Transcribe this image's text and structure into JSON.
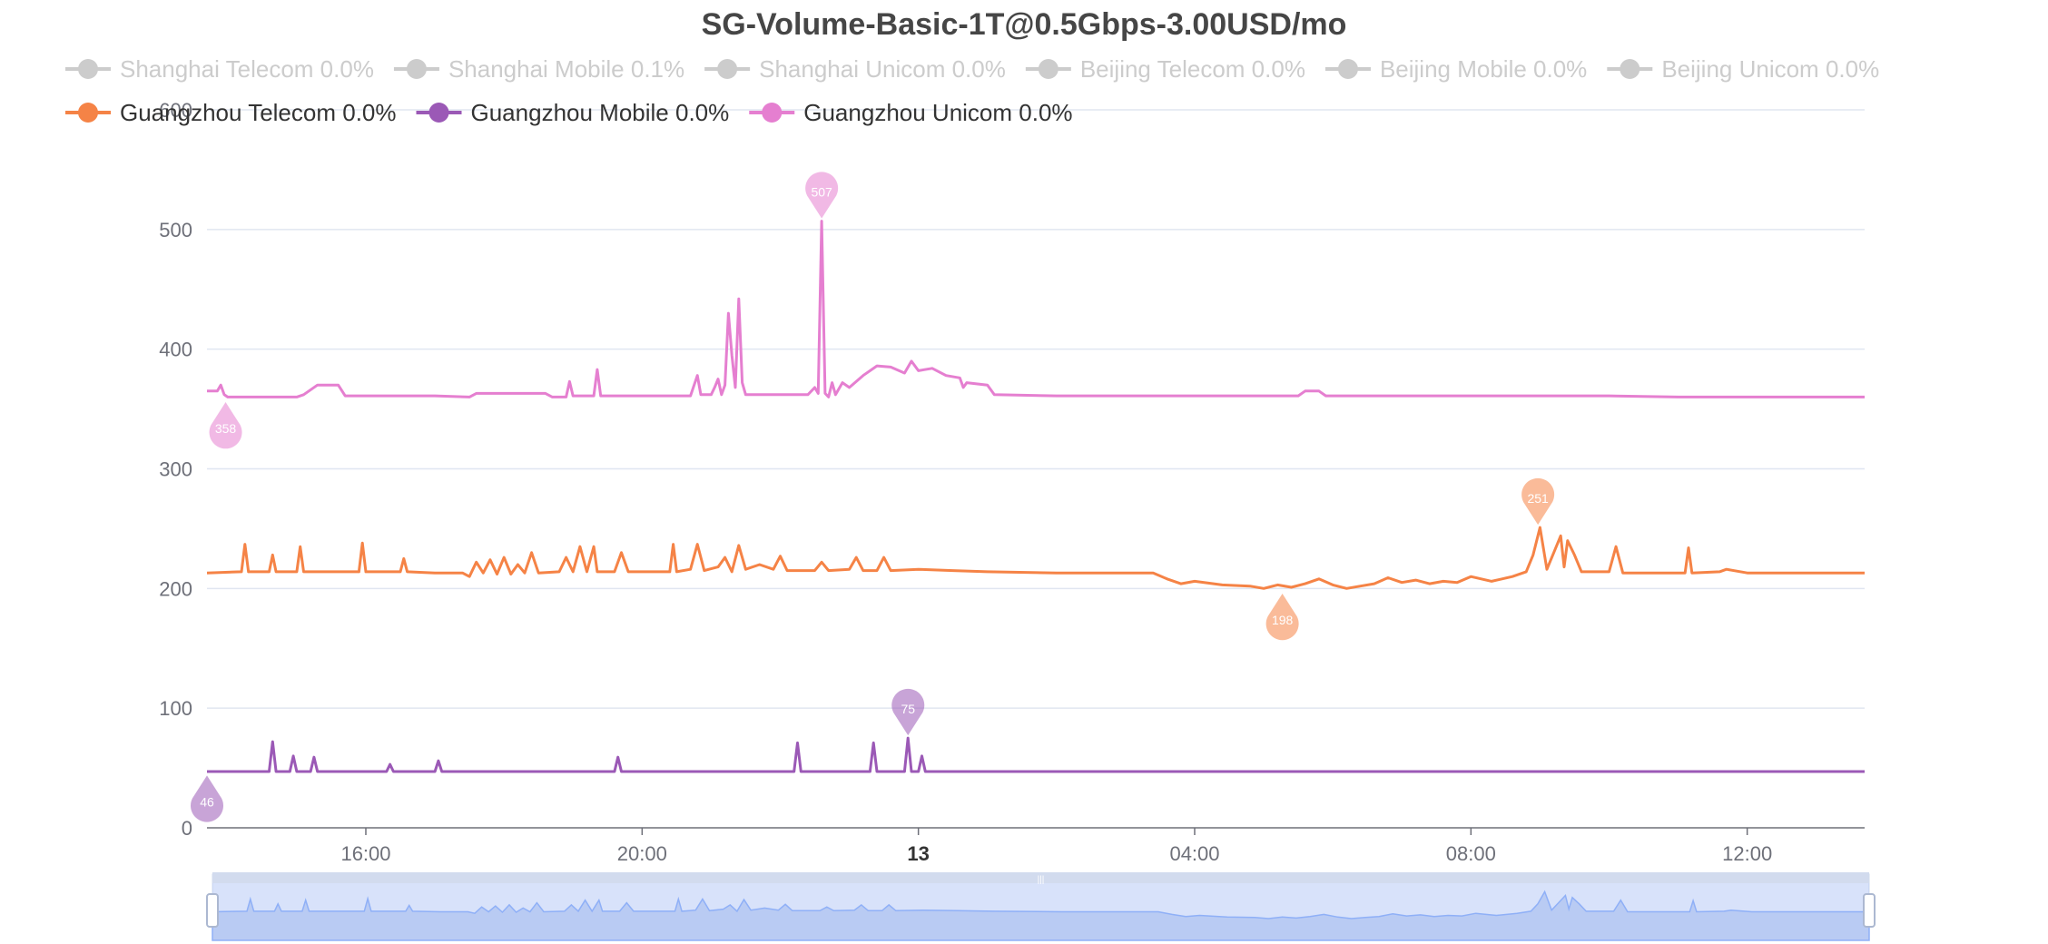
{
  "chart_data": {
    "type": "line",
    "title": "SG-Volume-Basic-1T@0.5Gbps-3.00USD/mo",
    "ylim": [
      0,
      600
    ],
    "y_ticks": [
      0,
      100,
      200,
      300,
      400,
      500,
      600
    ],
    "x_range_hours": [
      13.7,
      37.7
    ],
    "x_ticks": [
      {
        "hour": 16,
        "label": "16:00",
        "bold": false
      },
      {
        "hour": 20,
        "label": "20:00",
        "bold": false
      },
      {
        "hour": 24,
        "label": "13",
        "bold": true
      },
      {
        "hour": 28,
        "label": "04:00",
        "bold": false
      },
      {
        "hour": 32,
        "label": "08:00",
        "bold": false
      },
      {
        "hour": 36,
        "label": "12:00",
        "bold": false
      }
    ],
    "grid": true,
    "legend_position": "top",
    "legend": [
      {
        "name": "Shanghai Telecom 0.0%",
        "active": false,
        "color": "#cccccc"
      },
      {
        "name": "Shanghai Mobile 0.1%",
        "active": false,
        "color": "#cccccc"
      },
      {
        "name": "Shanghai Unicom 0.0%",
        "active": false,
        "color": "#cccccc"
      },
      {
        "name": "Beijing Telecom 0.0%",
        "active": false,
        "color": "#cccccc"
      },
      {
        "name": "Beijing Mobile 0.0%",
        "active": false,
        "color": "#cccccc"
      },
      {
        "name": "Beijing Unicom 0.0%",
        "active": false,
        "color": "#cccccc"
      },
      {
        "name": "Guangzhou Telecom 0.0%",
        "active": true,
        "color": "#f58346"
      },
      {
        "name": "Guangzhou Mobile 0.0%",
        "active": true,
        "color": "#9b59b6"
      },
      {
        "name": "Guangzhou Unicom 0.0%",
        "active": true,
        "color": "#e57fd0"
      }
    ],
    "series": [
      {
        "name": "Guangzhou Unicom 0.0%",
        "color": "#e57fd0",
        "points": [
          [
            13.7,
            365
          ],
          [
            13.85,
            365
          ],
          [
            13.9,
            370
          ],
          [
            13.95,
            362
          ],
          [
            14.0,
            360
          ],
          [
            15.0,
            360
          ],
          [
            15.1,
            362
          ],
          [
            15.3,
            370
          ],
          [
            15.6,
            370
          ],
          [
            15.7,
            361
          ],
          [
            17.0,
            361
          ],
          [
            17.5,
            360
          ],
          [
            17.6,
            363
          ],
          [
            18.6,
            363
          ],
          [
            18.7,
            360
          ],
          [
            18.9,
            360
          ],
          [
            18.95,
            373
          ],
          [
            19.0,
            361
          ],
          [
            19.3,
            361
          ],
          [
            19.35,
            383
          ],
          [
            19.4,
            361
          ],
          [
            20.7,
            361
          ],
          [
            20.8,
            378
          ],
          [
            20.85,
            362
          ],
          [
            21.0,
            362
          ],
          [
            21.05,
            368
          ],
          [
            21.1,
            375
          ],
          [
            21.15,
            362
          ],
          [
            21.2,
            370
          ],
          [
            21.25,
            430
          ],
          [
            21.3,
            395
          ],
          [
            21.35,
            368
          ],
          [
            21.4,
            442
          ],
          [
            21.45,
            372
          ],
          [
            21.5,
            362
          ],
          [
            22.4,
            362
          ],
          [
            22.5,
            368
          ],
          [
            22.55,
            363
          ],
          [
            22.6,
            507
          ],
          [
            22.65,
            363
          ],
          [
            22.7,
            360
          ],
          [
            22.75,
            372
          ],
          [
            22.8,
            362
          ],
          [
            22.9,
            372
          ],
          [
            23.0,
            368
          ],
          [
            23.2,
            378
          ],
          [
            23.4,
            386
          ],
          [
            23.6,
            385
          ],
          [
            23.8,
            380
          ],
          [
            23.9,
            390
          ],
          [
            24.0,
            382
          ],
          [
            24.2,
            384
          ],
          [
            24.4,
            378
          ],
          [
            24.6,
            376
          ],
          [
            24.65,
            368
          ],
          [
            24.7,
            372
          ],
          [
            25.0,
            370
          ],
          [
            25.1,
            362
          ],
          [
            26.0,
            361
          ],
          [
            27.0,
            361
          ],
          [
            28.0,
            361
          ],
          [
            29.0,
            361
          ],
          [
            29.5,
            361
          ],
          [
            29.6,
            365
          ],
          [
            29.8,
            365
          ],
          [
            29.9,
            361
          ],
          [
            32.0,
            361
          ],
          [
            34.0,
            361
          ],
          [
            35.0,
            360
          ],
          [
            37.7,
            360
          ]
        ]
      },
      {
        "name": "Guangzhou Telecom 0.0%",
        "color": "#f58346",
        "points": [
          [
            13.7,
            213
          ],
          [
            14.2,
            214
          ],
          [
            14.25,
            237
          ],
          [
            14.3,
            214
          ],
          [
            14.6,
            214
          ],
          [
            14.65,
            228
          ],
          [
            14.7,
            214
          ],
          [
            15.0,
            214
          ],
          [
            15.05,
            235
          ],
          [
            15.1,
            214
          ],
          [
            15.9,
            214
          ],
          [
            15.95,
            238
          ],
          [
            16.0,
            214
          ],
          [
            16.5,
            214
          ],
          [
            16.55,
            225
          ],
          [
            16.6,
            214
          ],
          [
            17.0,
            213
          ],
          [
            17.4,
            213
          ],
          [
            17.5,
            210
          ],
          [
            17.6,
            222
          ],
          [
            17.7,
            213
          ],
          [
            17.8,
            224
          ],
          [
            17.9,
            212
          ],
          [
            18.0,
            226
          ],
          [
            18.1,
            212
          ],
          [
            18.2,
            220
          ],
          [
            18.3,
            213
          ],
          [
            18.4,
            230
          ],
          [
            18.5,
            213
          ],
          [
            18.8,
            214
          ],
          [
            18.9,
            226
          ],
          [
            19.0,
            214
          ],
          [
            19.1,
            235
          ],
          [
            19.2,
            214
          ],
          [
            19.3,
            235
          ],
          [
            19.35,
            214
          ],
          [
            19.6,
            214
          ],
          [
            19.7,
            230
          ],
          [
            19.8,
            214
          ],
          [
            20.4,
            214
          ],
          [
            20.45,
            237
          ],
          [
            20.5,
            214
          ],
          [
            20.7,
            216
          ],
          [
            20.8,
            237
          ],
          [
            20.9,
            215
          ],
          [
            21.1,
            218
          ],
          [
            21.2,
            226
          ],
          [
            21.3,
            214
          ],
          [
            21.4,
            236
          ],
          [
            21.5,
            216
          ],
          [
            21.7,
            220
          ],
          [
            21.9,
            216
          ],
          [
            22.0,
            227
          ],
          [
            22.1,
            215
          ],
          [
            22.5,
            215
          ],
          [
            22.6,
            222
          ],
          [
            22.7,
            215
          ],
          [
            23.0,
            216
          ],
          [
            23.1,
            226
          ],
          [
            23.2,
            215
          ],
          [
            23.4,
            215
          ],
          [
            23.5,
            226
          ],
          [
            23.6,
            215
          ],
          [
            24.0,
            216
          ],
          [
            24.5,
            215
          ],
          [
            25.0,
            214
          ],
          [
            26.0,
            213
          ],
          [
            27.0,
            213
          ],
          [
            27.4,
            213
          ],
          [
            27.6,
            208
          ],
          [
            27.8,
            204
          ],
          [
            28.0,
            206
          ],
          [
            28.4,
            203
          ],
          [
            28.8,
            202
          ],
          [
            29.0,
            200
          ],
          [
            29.2,
            203
          ],
          [
            29.4,
            201
          ],
          [
            29.6,
            204
          ],
          [
            29.8,
            208
          ],
          [
            30.0,
            203
          ],
          [
            30.2,
            200
          ],
          [
            30.4,
            202
          ],
          [
            30.6,
            204
          ],
          [
            30.8,
            209
          ],
          [
            31.0,
            205
          ],
          [
            31.2,
            207
          ],
          [
            31.4,
            204
          ],
          [
            31.6,
            206
          ],
          [
            31.8,
            205
          ],
          [
            32.0,
            210
          ],
          [
            32.3,
            206
          ],
          [
            32.6,
            210
          ],
          [
            32.8,
            214
          ],
          [
            32.9,
            228
          ],
          [
            33.0,
            251
          ],
          [
            33.1,
            216
          ],
          [
            33.2,
            230
          ],
          [
            33.3,
            244
          ],
          [
            33.35,
            218
          ],
          [
            33.4,
            240
          ],
          [
            33.5,
            228
          ],
          [
            33.6,
            214
          ],
          [
            34.0,
            214
          ],
          [
            34.1,
            235
          ],
          [
            34.2,
            213
          ],
          [
            35.1,
            213
          ],
          [
            35.15,
            234
          ],
          [
            35.2,
            213
          ],
          [
            35.6,
            214
          ],
          [
            35.7,
            216
          ],
          [
            36.0,
            213
          ],
          [
            37.7,
            213
          ]
        ]
      },
      {
        "name": "Guangzhou Mobile 0.0%",
        "color": "#9b59b6",
        "points": [
          [
            13.7,
            47
          ],
          [
            14.6,
            47
          ],
          [
            14.65,
            72
          ],
          [
            14.7,
            47
          ],
          [
            14.9,
            47
          ],
          [
            14.95,
            60
          ],
          [
            15.0,
            47
          ],
          [
            15.2,
            47
          ],
          [
            15.25,
            59
          ],
          [
            15.3,
            47
          ],
          [
            16.3,
            47
          ],
          [
            16.35,
            53
          ],
          [
            16.4,
            47
          ],
          [
            17.0,
            47
          ],
          [
            17.05,
            56
          ],
          [
            17.1,
            47
          ],
          [
            19.6,
            47
          ],
          [
            19.65,
            59
          ],
          [
            19.7,
            47
          ],
          [
            22.2,
            47
          ],
          [
            22.25,
            71
          ],
          [
            22.3,
            47
          ],
          [
            23.3,
            47
          ],
          [
            23.35,
            71
          ],
          [
            23.4,
            47
          ],
          [
            23.8,
            47
          ],
          [
            23.85,
            75
          ],
          [
            23.9,
            47
          ],
          [
            24.0,
            47
          ],
          [
            24.05,
            60
          ],
          [
            24.1,
            47
          ],
          [
            26.0,
            47
          ],
          [
            30.0,
            47
          ],
          [
            34.0,
            47
          ],
          [
            37.7,
            47
          ]
        ]
      }
    ],
    "markers": [
      {
        "series": "Guangzhou Unicom 0.0%",
        "type": "max",
        "hour": 22.6,
        "value": 507,
        "label": "507",
        "color": "#e57fd0"
      },
      {
        "series": "Guangzhou Unicom 0.0%",
        "type": "min",
        "hour": 13.97,
        "value": 358,
        "label": "358",
        "color": "#e57fd0"
      },
      {
        "series": "Guangzhou Telecom 0.0%",
        "type": "max",
        "hour": 32.97,
        "value": 251,
        "label": "251",
        "color": "#f58346"
      },
      {
        "series": "Guangzhou Telecom 0.0%",
        "type": "min",
        "hour": 29.27,
        "value": 198,
        "label": "198",
        "color": "#f58346"
      },
      {
        "series": "Guangzhou Mobile 0.0%",
        "type": "max",
        "hour": 23.85,
        "value": 75,
        "label": "75",
        "color": "#9b59b6"
      },
      {
        "series": "Guangzhou Mobile 0.0%",
        "type": "min",
        "hour": 13.7,
        "value": 46,
        "label": "46",
        "color": "#9b59b6"
      }
    ],
    "data_zoom": {
      "start_fraction": 0,
      "end_fraction": 1,
      "handle_label": "|||"
    }
  }
}
